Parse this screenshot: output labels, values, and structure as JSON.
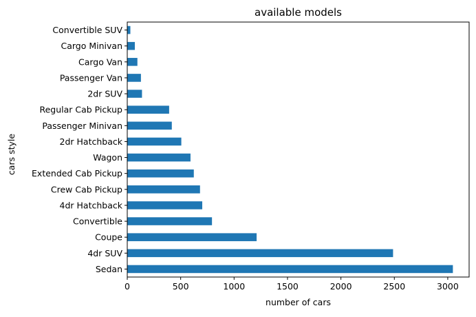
{
  "chart_data": {
    "type": "bar",
    "orientation": "horizontal",
    "title": "available models",
    "xlabel": "number of cars",
    "ylabel": "cars style",
    "categories": [
      "Sedan",
      "4dr SUV",
      "Coupe",
      "Convertible",
      "4dr Hatchback",
      "Crew Cab Pickup",
      "Extended Cab Pickup",
      "Wagon",
      "2dr Hatchback",
      "Passenger Minivan",
      "Regular Cab Pickup",
      "2dr SUV",
      "Passenger Van",
      "Cargo Van",
      "Cargo Minivan",
      "Convertible SUV"
    ],
    "values": [
      3048,
      2488,
      1211,
      793,
      702,
      681,
      623,
      592,
      506,
      417,
      392,
      138,
      128,
      95,
      71,
      29
    ],
    "xlim": [
      0,
      3200
    ],
    "xticks": [
      0,
      500,
      1000,
      1500,
      2000,
      2500,
      3000
    ],
    "grid": false,
    "bar_color": "#1f77b4"
  }
}
